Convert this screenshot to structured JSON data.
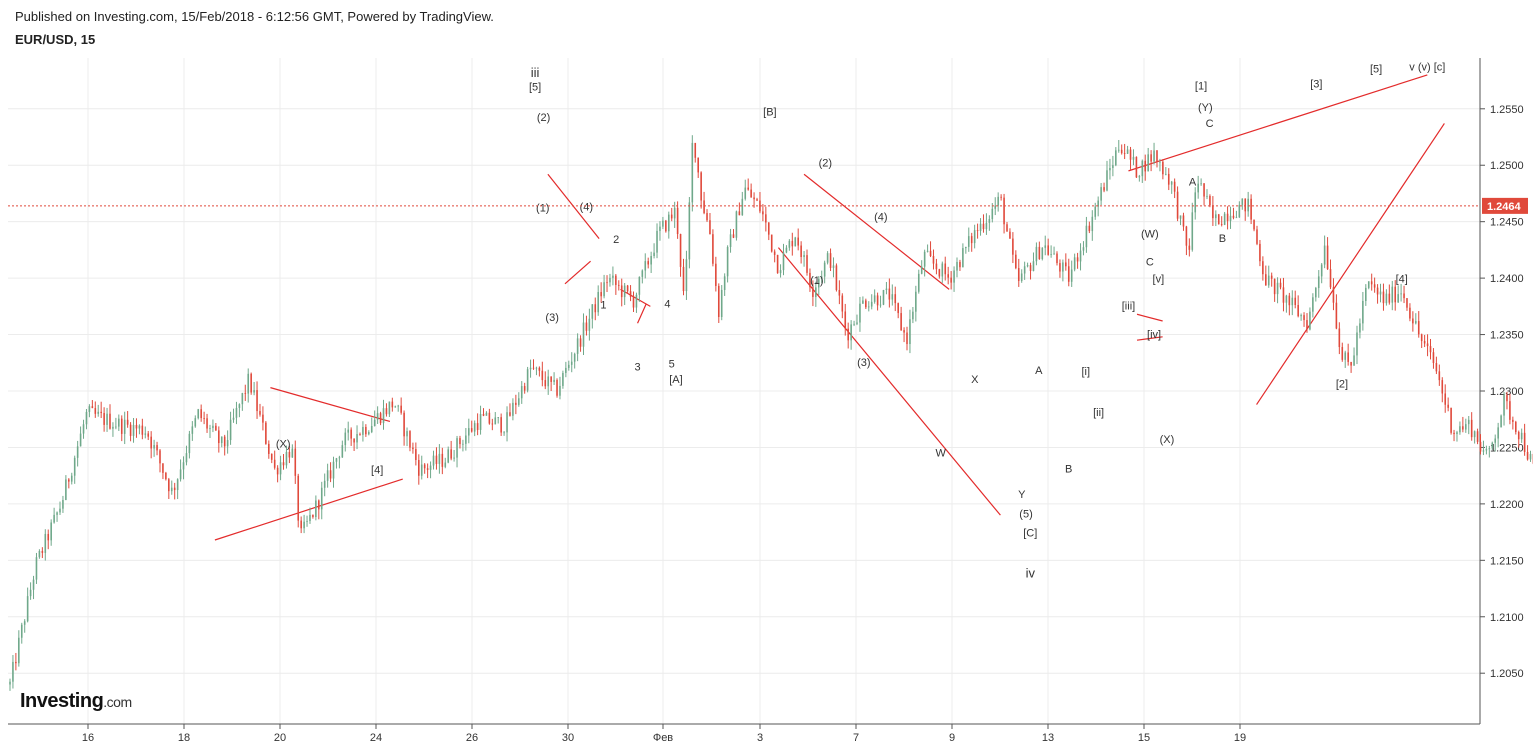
{
  "header": {
    "published": "Published on Investing.com, 15/Feb/2018 - 6:12:56 GMT, Powered by TradingView.",
    "symbol": "EUR/USD, 15"
  },
  "logo": {
    "main": "Investing",
    "suffix": ".com"
  },
  "colors": {
    "up": "#6fa88a",
    "down": "#e0493b",
    "trendline": "#e32b2b",
    "grid": "#ececec",
    "price_tag": "#e0493b"
  },
  "chart_data": {
    "type": "candlestick",
    "symbol": "EUR/USD",
    "interval": "15",
    "x_ticks": [
      "16",
      "18",
      "20",
      "24",
      "26",
      "30",
      "Фев",
      "3",
      "7",
      "9",
      "13",
      "15",
      "19"
    ],
    "y_ticks": [
      "1.2050",
      "1.2100",
      "1.2150",
      "1.2200",
      "1.2250",
      "1.2300",
      "1.2350",
      "1.2400",
      "1.2450",
      "1.2500",
      "1.2550"
    ],
    "ylim": [
      1.2005,
      1.2595
    ],
    "last_price": "1.2464",
    "price_path": [
      [
        0,
        1.204
      ],
      [
        3,
        1.2145
      ],
      [
        6,
        1.22
      ],
      [
        9,
        1.228
      ],
      [
        13,
        1.227
      ],
      [
        16,
        1.2265
      ],
      [
        19,
        1.221
      ],
      [
        22,
        1.228
      ],
      [
        25,
        1.225
      ],
      [
        28,
        1.231
      ],
      [
        31,
        1.223
      ],
      [
        33,
        1.225
      ],
      [
        34,
        1.217
      ],
      [
        36,
        1.22
      ],
      [
        39,
        1.2255
      ],
      [
        42,
        1.227
      ],
      [
        45,
        1.229
      ],
      [
        48,
        1.223
      ],
      [
        51,
        1.224
      ],
      [
        55,
        1.2275
      ],
      [
        58,
        1.227
      ],
      [
        61,
        1.232
      ],
      [
        64,
        1.23
      ],
      [
        67,
        1.235
      ],
      [
        70,
        1.24
      ],
      [
        73,
        1.238
      ],
      [
        76,
        1.244
      ],
      [
        78,
        1.246
      ],
      [
        79,
        1.2375
      ],
      [
        80,
        1.253
      ],
      [
        81,
        1.247
      ],
      [
        82,
        1.244
      ],
      [
        83,
        1.237
      ],
      [
        84,
        1.242
      ],
      [
        86,
        1.248
      ],
      [
        88,
        1.246
      ],
      [
        90,
        1.241
      ],
      [
        92,
        1.244
      ],
      [
        94,
        1.239
      ],
      [
        96,
        1.242
      ],
      [
        98,
        1.235
      ],
      [
        100,
        1.238
      ],
      [
        103,
        1.2385
      ],
      [
        105,
        1.2345
      ],
      [
        107,
        1.242
      ],
      [
        110,
        1.24
      ],
      [
        113,
        1.244
      ],
      [
        116,
        1.247
      ],
      [
        118,
        1.2395
      ],
      [
        121,
        1.243
      ],
      [
        124,
        1.24
      ],
      [
        127,
        1.246
      ],
      [
        130,
        1.252
      ],
      [
        132,
        1.2495
      ],
      [
        134,
        1.251
      ],
      [
        136,
        1.2485
      ],
      [
        138,
        1.242
      ],
      [
        139,
        1.249
      ],
      [
        141,
        1.245
      ],
      [
        143,
        1.246
      ],
      [
        145,
        1.2465
      ],
      [
        147,
        1.24
      ],
      [
        149,
        1.2385
      ],
      [
        152,
        1.236
      ],
      [
        154,
        1.243
      ],
      [
        156,
        1.233
      ],
      [
        157,
        1.232
      ],
      [
        159,
        1.2395
      ],
      [
        161,
        1.238
      ],
      [
        163,
        1.239
      ],
      [
        165,
        1.235
      ],
      [
        167,
        1.232
      ],
      [
        169,
        1.2265
      ],
      [
        171,
        1.227
      ],
      [
        173,
        1.224
      ],
      [
        175,
        1.229
      ],
      [
        177,
        1.226
      ],
      [
        179,
        1.222
      ],
      [
        181,
        1.226
      ],
      [
        183,
        1.2265
      ],
      [
        185,
        1.225
      ],
      [
        187,
        1.223
      ],
      [
        189,
        1.2205
      ],
      [
        191,
        1.224
      ],
      [
        193,
        1.2255
      ],
      [
        195,
        1.2295
      ],
      [
        197,
        1.228
      ],
      [
        199,
        1.224
      ],
      [
        201,
        1.226
      ],
      [
        203,
        1.229
      ],
      [
        205,
        1.231
      ],
      [
        207,
        1.23
      ],
      [
        209,
        1.233
      ],
      [
        211,
        1.237
      ],
      [
        213,
        1.2355
      ],
      [
        215,
        1.235
      ],
      [
        216,
        1.239
      ],
      [
        218,
        1.2355
      ],
      [
        219,
        1.228
      ],
      [
        220,
        1.232
      ],
      [
        221,
        1.239
      ],
      [
        223,
        1.243
      ],
      [
        225,
        1.246
      ],
      [
        227,
        1.2465
      ]
    ],
    "annotations": [
      {
        "text": "(X)",
        "x": 32,
        "y": 1.225
      },
      {
        "text": "[4]",
        "x": 43,
        "y": 1.2227
      },
      {
        "text": "iii",
        "x": 61.5,
        "y": 1.2578,
        "bold": true
      },
      {
        "text": "[5]",
        "x": 61.5,
        "y": 1.2566
      },
      {
        "text": "(2)",
        "x": 62.5,
        "y": 1.2539
      },
      {
        "text": "(1)",
        "x": 62.4,
        "y": 1.2459
      },
      {
        "text": "(3)",
        "x": 63.5,
        "y": 1.2362
      },
      {
        "text": "(4)",
        "x": 67.5,
        "y": 1.246
      },
      {
        "text": "2",
        "x": 71,
        "y": 1.2431
      },
      {
        "text": "1",
        "x": 69.5,
        "y": 1.2373
      },
      {
        "text": "3",
        "x": 73.5,
        "y": 1.2318
      },
      {
        "text": "4",
        "x": 77,
        "y": 1.2374
      },
      {
        "text": "5",
        "x": 77.5,
        "y": 1.2321
      },
      {
        "text": "[A]",
        "x": 78,
        "y": 1.2307
      },
      {
        "text": "[B]",
        "x": 89,
        "y": 1.2544
      },
      {
        "text": "(2)",
        "x": 95.5,
        "y": 1.2499
      },
      {
        "text": "(1)",
        "x": 94.5,
        "y": 1.2395
      },
      {
        "text": "(4)",
        "x": 102,
        "y": 1.2451
      },
      {
        "text": "(3)",
        "x": 100,
        "y": 1.2322
      },
      {
        "text": "W",
        "x": 109,
        "y": 1.2242
      },
      {
        "text": "X",
        "x": 113,
        "y": 1.2307
      },
      {
        "text": "Y",
        "x": 118.5,
        "y": 1.2205
      },
      {
        "text": "(5)",
        "x": 119,
        "y": 1.2188
      },
      {
        "text": "[C]",
        "x": 119.5,
        "y": 1.2171
      },
      {
        "text": "iv",
        "x": 119.5,
        "y": 1.2135,
        "bold": true
      },
      {
        "text": "A",
        "x": 120.5,
        "y": 1.2315
      },
      {
        "text": "B",
        "x": 124,
        "y": 1.2228
      },
      {
        "text": "[i]",
        "x": 126,
        "y": 1.2314
      },
      {
        "text": "[ii]",
        "x": 127.5,
        "y": 1.2278
      },
      {
        "text": "[iii]",
        "x": 131,
        "y": 1.2372
      },
      {
        "text": "[iv]",
        "x": 134,
        "y": 1.2347
      },
      {
        "text": "[v]",
        "x": 134.5,
        "y": 1.2396
      },
      {
        "text": "C",
        "x": 133.5,
        "y": 1.2411
      },
      {
        "text": "(W)",
        "x": 133.5,
        "y": 1.2436
      },
      {
        "text": "(X)",
        "x": 135.5,
        "y": 1.2254
      },
      {
        "text": "A",
        "x": 138.5,
        "y": 1.2482
      },
      {
        "text": "B",
        "x": 142,
        "y": 1.2432
      },
      {
        "text": "C",
        "x": 140.5,
        "y": 1.2534
      },
      {
        "text": "(Y)",
        "x": 140,
        "y": 1.2548
      },
      {
        "text": "[1]",
        "x": 139.5,
        "y": 1.2567
      },
      {
        "text": "[3]",
        "x": 153,
        "y": 1.2569
      },
      {
        "text": "[5]",
        "x": 160,
        "y": 1.2582
      },
      {
        "text": "v (v) [c]",
        "x": 166,
        "y": 1.2584
      },
      {
        "text": "[4]",
        "x": 163,
        "y": 1.2396
      },
      {
        "text": "[2]",
        "x": 156,
        "y": 1.2303
      }
    ],
    "trendlines": [
      [
        [
          24,
          1.2168
        ],
        [
          46,
          1.2222
        ]
      ],
      [
        [
          30.5,
          1.2303
        ],
        [
          44.5,
          1.2273
        ]
      ],
      [
        [
          63,
          1.2492
        ],
        [
          69,
          1.2435
        ]
      ],
      [
        [
          65,
          1.2395
        ],
        [
          68,
          1.2415
        ]
      ],
      [
        [
          71.5,
          1.239
        ],
        [
          75,
          1.2375
        ]
      ],
      [
        [
          73.5,
          1.236
        ],
        [
          74.5,
          1.2377
        ]
      ],
      [
        [
          93,
          1.2492
        ],
        [
          110,
          1.239
        ]
      ],
      [
        [
          90,
          1.2427
        ],
        [
          116,
          1.219
        ]
      ],
      [
        [
          132,
          1.2368
        ],
        [
          135,
          1.2362
        ]
      ],
      [
        [
          132,
          1.2345
        ],
        [
          135,
          1.2348
        ]
      ],
      [
        [
          131,
          1.2495
        ],
        [
          166,
          1.258
        ]
      ],
      [
        [
          146,
          1.2288
        ],
        [
          168,
          1.2537
        ]
      ]
    ]
  }
}
